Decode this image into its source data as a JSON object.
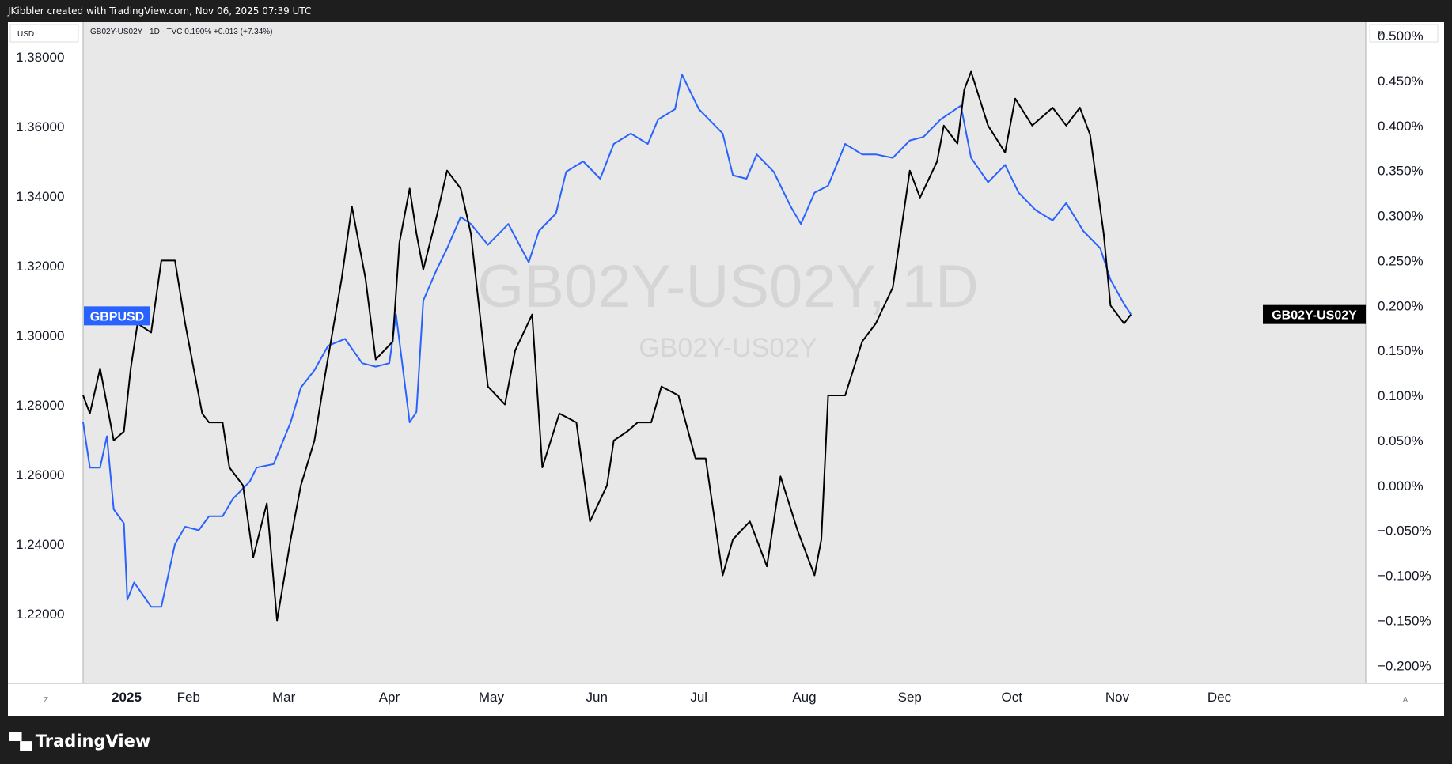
{
  "header": {
    "credit": "JKibbler created with TradingView.com, Nov 06, 2025 07:39 UTC"
  },
  "footer": {
    "brand": "TradingView",
    "logo_icon": "tradingview-logo-icon"
  },
  "chart_data": {
    "type": "line",
    "legend_text": "GB02Y-US02Y · 1D · TVC  0.190%  +0.013 (+7.34%)",
    "watermark_main": "GB02Y-US02Y, 1D",
    "watermark_sub": "GB02Y-US02Y",
    "left_axis": {
      "unit": "USD",
      "ylim": [
        1.2,
        1.39
      ],
      "ticks": [
        "1.38000",
        "1.36000",
        "1.34000",
        "1.32000",
        "1.30000",
        "1.28000",
        "1.26000",
        "1.24000",
        "1.22000"
      ]
    },
    "right_axis": {
      "unit": "%",
      "ylim": [
        -0.22,
        0.515
      ],
      "ticks": [
        "0.500%",
        "0.450%",
        "0.400%",
        "0.350%",
        "0.300%",
        "0.250%",
        "0.200%",
        "0.150%",
        "0.100%",
        "0.050%",
        "0.000%",
        "−0.050%",
        "−0.100%",
        "−0.150%",
        "−0.200%"
      ]
    },
    "x_axis": {
      "labels": [
        "2025",
        "Feb",
        "Mar",
        "Apr",
        "May",
        "Jun",
        "Jul",
        "Aug",
        "Sep",
        "Oct",
        "Nov",
        "Dec"
      ],
      "corner_left": "Z",
      "corner_right": "A"
    },
    "colors": {
      "GBPUSD": "#2962ff",
      "GB02Y-US02Y": "#000000",
      "background": "#e8e8e8"
    },
    "series": [
      {
        "name": "GBPUSD",
        "axis": "left",
        "label": "GBPUSD",
        "last_value": 1.3056,
        "x": [
          "2025-01-01",
          "2025-01-03",
          "2025-01-06",
          "2025-01-08",
          "2025-01-10",
          "2025-01-13",
          "2025-01-14",
          "2025-01-16",
          "2025-01-21",
          "2025-01-24",
          "2025-01-28",
          "2025-01-31",
          "2025-02-04",
          "2025-02-07",
          "2025-02-11",
          "2025-02-14",
          "2025-02-19",
          "2025-02-21",
          "2025-02-26",
          "2025-03-03",
          "2025-03-06",
          "2025-03-10",
          "2025-03-14",
          "2025-03-19",
          "2025-03-24",
          "2025-03-28",
          "2025-04-01",
          "2025-04-03",
          "2025-04-07",
          "2025-04-09",
          "2025-04-11",
          "2025-04-15",
          "2025-04-18",
          "2025-04-22",
          "2025-04-25",
          "2025-04-30",
          "2025-05-06",
          "2025-05-12",
          "2025-05-15",
          "2025-05-20",
          "2025-05-23",
          "2025-05-28",
          "2025-06-02",
          "2025-06-06",
          "2025-06-11",
          "2025-06-16",
          "2025-06-19",
          "2025-06-24",
          "2025-06-26",
          "2025-07-01",
          "2025-07-03",
          "2025-07-08",
          "2025-07-11",
          "2025-07-15",
          "2025-07-18",
          "2025-07-23",
          "2025-07-28",
          "2025-07-31",
          "2025-08-04",
          "2025-08-08",
          "2025-08-13",
          "2025-08-18",
          "2025-08-22",
          "2025-08-27",
          "2025-09-01",
          "2025-09-05",
          "2025-09-10",
          "2025-09-16",
          "2025-09-19",
          "2025-09-24",
          "2025-09-29",
          "2025-10-03",
          "2025-10-08",
          "2025-10-13",
          "2025-10-17",
          "2025-10-22",
          "2025-10-27",
          "2025-10-30",
          "2025-11-03",
          "2025-11-05"
        ],
        "y": [
          1.275,
          1.262,
          1.262,
          1.271,
          1.25,
          1.246,
          1.224,
          1.229,
          1.222,
          1.222,
          1.24,
          1.245,
          1.244,
          1.248,
          1.248,
          1.253,
          1.258,
          1.262,
          1.263,
          1.275,
          1.285,
          1.29,
          1.297,
          1.299,
          1.292,
          1.291,
          1.292,
          1.306,
          1.275,
          1.278,
          1.31,
          1.319,
          1.325,
          1.334,
          1.332,
          1.326,
          1.332,
          1.321,
          1.33,
          1.335,
          1.347,
          1.35,
          1.345,
          1.355,
          1.358,
          1.355,
          1.362,
          1.365,
          1.375,
          1.365,
          1.363,
          1.358,
          1.346,
          1.345,
          1.352,
          1.347,
          1.337,
          1.332,
          1.341,
          1.343,
          1.355,
          1.352,
          1.352,
          1.351,
          1.356,
          1.357,
          1.362,
          1.366,
          1.351,
          1.344,
          1.349,
          1.341,
          1.336,
          1.333,
          1.338,
          1.33,
          1.325,
          1.316,
          1.309,
          1.306
        ]
      },
      {
        "name": "GB02Y-US02Y",
        "axis": "right",
        "label": "GB02Y-US02Y",
        "last_value": 0.19,
        "x": [
          "2025-01-01",
          "2025-01-03",
          "2025-01-06",
          "2025-01-08",
          "2025-01-10",
          "2025-01-13",
          "2025-01-15",
          "2025-01-17",
          "2025-01-21",
          "2025-01-24",
          "2025-01-28",
          "2025-01-31",
          "2025-02-03",
          "2025-02-05",
          "2025-02-07",
          "2025-02-11",
          "2025-02-13",
          "2025-02-17",
          "2025-02-20",
          "2025-02-24",
          "2025-02-27",
          "2025-03-03",
          "2025-03-06",
          "2025-03-10",
          "2025-03-13",
          "2025-03-18",
          "2025-03-21",
          "2025-03-25",
          "2025-03-28",
          "2025-04-02",
          "2025-04-04",
          "2025-04-07",
          "2025-04-09",
          "2025-04-11",
          "2025-04-15",
          "2025-04-18",
          "2025-04-22",
          "2025-04-25",
          "2025-04-30",
          "2025-05-05",
          "2025-05-08",
          "2025-05-13",
          "2025-05-16",
          "2025-05-21",
          "2025-05-26",
          "2025-05-30",
          "2025-06-04",
          "2025-06-06",
          "2025-06-10",
          "2025-06-13",
          "2025-06-17",
          "2025-06-20",
          "2025-06-25",
          "2025-06-30",
          "2025-07-03",
          "2025-07-08",
          "2025-07-11",
          "2025-07-16",
          "2025-07-21",
          "2025-07-25",
          "2025-07-30",
          "2025-08-01",
          "2025-08-04",
          "2025-08-06",
          "2025-08-08",
          "2025-08-13",
          "2025-08-18",
          "2025-08-22",
          "2025-08-27",
          "2025-09-01",
          "2025-09-04",
          "2025-09-09",
          "2025-09-11",
          "2025-09-15",
          "2025-09-17",
          "2025-09-19",
          "2025-09-24",
          "2025-09-29",
          "2025-10-02",
          "2025-10-07",
          "2025-10-13",
          "2025-10-17",
          "2025-10-21",
          "2025-10-24",
          "2025-10-28",
          "2025-10-30",
          "2025-11-03",
          "2025-11-05"
        ],
        "y": [
          0.1,
          0.08,
          0.13,
          0.09,
          0.05,
          0.06,
          0.13,
          0.18,
          0.17,
          0.25,
          0.25,
          0.18,
          0.12,
          0.08,
          0.07,
          0.07,
          0.02,
          0.0,
          -0.08,
          -0.02,
          -0.15,
          -0.06,
          0.0,
          0.05,
          0.12,
          0.23,
          0.31,
          0.23,
          0.14,
          0.16,
          0.27,
          0.33,
          0.28,
          0.24,
          0.3,
          0.35,
          0.33,
          0.28,
          0.11,
          0.09,
          0.15,
          0.19,
          0.02,
          0.08,
          0.07,
          -0.04,
          0.0,
          0.05,
          0.06,
          0.07,
          0.07,
          0.11,
          0.1,
          0.03,
          0.03,
          -0.1,
          -0.06,
          -0.04,
          -0.09,
          0.01,
          -0.05,
          -0.07,
          -0.1,
          -0.06,
          0.1,
          0.1,
          0.16,
          0.18,
          0.22,
          0.35,
          0.32,
          0.36,
          0.4,
          0.38,
          0.44,
          0.46,
          0.4,
          0.37,
          0.43,
          0.4,
          0.42,
          0.4,
          0.42,
          0.39,
          0.28,
          0.2,
          0.18,
          0.19
        ]
      }
    ]
  }
}
